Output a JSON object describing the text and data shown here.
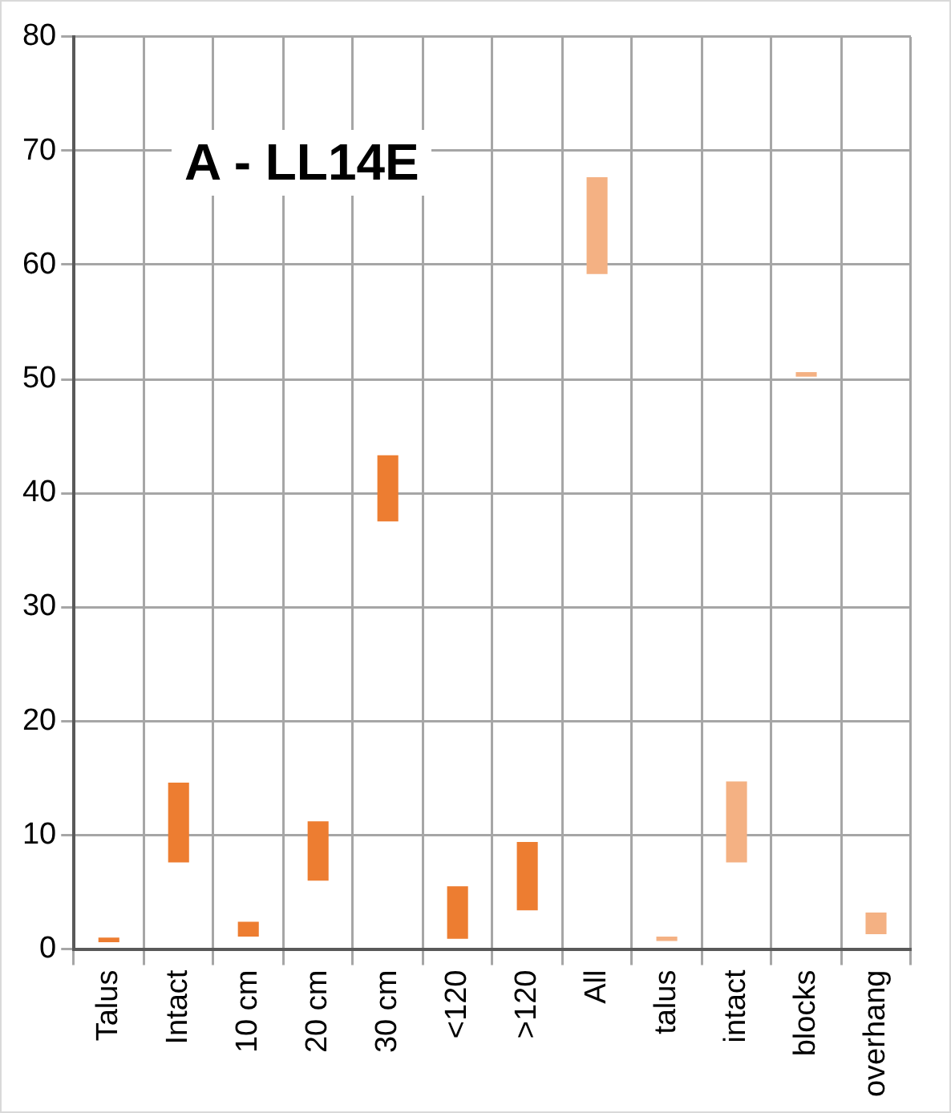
{
  "chart_data": {
    "type": "bar",
    "title": "A - LL14E",
    "categories": [
      "Talus",
      "Intact",
      "10 cm",
      "20 cm",
      "30 cm",
      "<120",
      ">120",
      "All",
      "talus",
      "intact",
      "blocks",
      "overhang"
    ],
    "values": [
      0.4,
      7.0,
      1.3,
      5.2,
      5.8,
      4.6,
      6.0,
      8.5,
      0.4,
      7.1,
      0.4,
      1.9
    ],
    "base": [
      0.6,
      7.6,
      1.1,
      6.0,
      37.5,
      0.9,
      3.4,
      59.2,
      0.7,
      7.6,
      50.2,
      1.3
    ],
    "colors": [
      "#ed7d31",
      "#ed7d31",
      "#ed7d31",
      "#ed7d31",
      "#ed7d31",
      "#ed7d31",
      "#ed7d31",
      "#f4b183",
      "#f4b183",
      "#f4b183",
      "#f4b183",
      "#f4b183"
    ],
    "ylim": [
      0,
      80
    ],
    "yticks": [
      0,
      10,
      20,
      30,
      40,
      50,
      60,
      70,
      80
    ],
    "grid": true,
    "legend": false
  }
}
